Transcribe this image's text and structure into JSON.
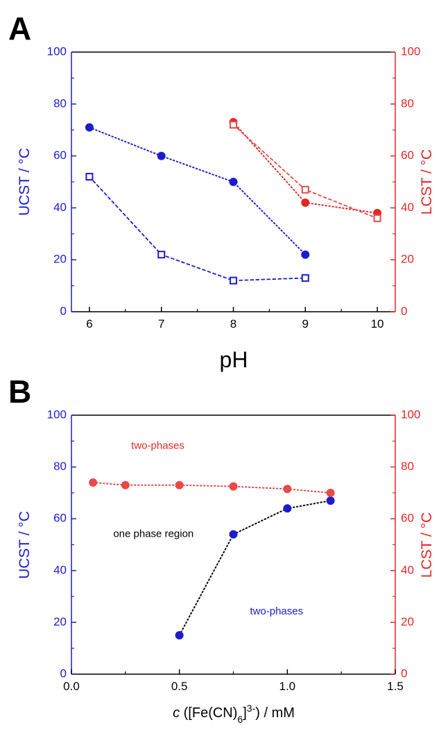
{
  "colors": {
    "blue": "#1c1ccf",
    "red": "#e32626",
    "red_light": "#e84a4a",
    "black": "#000000"
  },
  "chart_data": [
    {
      "panel_label": "A",
      "type": "line",
      "xlabel": "pH",
      "ylabel_left": "UCST / °C",
      "ylabel_right": "LCST / °C",
      "xlim": [
        5.75,
        10.25
      ],
      "ylim_left": [
        0,
        100
      ],
      "ylim_right": [
        0,
        100
      ],
      "x_ticks": [
        "6",
        "7",
        "8",
        "9",
        "10"
      ],
      "y_ticks": [
        "0",
        "20",
        "40",
        "60",
        "80",
        "100"
      ],
      "grid": false,
      "series": [
        {
          "axis": "left",
          "marker": "filled-circle",
          "line": "dotted",
          "color": "blue",
          "x": [
            6,
            7,
            8,
            9
          ],
          "y": [
            71,
            60,
            50,
            22
          ]
        },
        {
          "axis": "left",
          "marker": "open-square",
          "line": "dashed",
          "color": "blue",
          "x": [
            6,
            7,
            8,
            9
          ],
          "y": [
            52,
            22,
            12,
            13
          ]
        },
        {
          "axis": "right",
          "marker": "filled-circle",
          "line": "dotted",
          "color": "red",
          "x": [
            8,
            9,
            10
          ],
          "y": [
            73,
            42,
            38
          ]
        },
        {
          "axis": "right",
          "marker": "open-square",
          "line": "dashed",
          "color": "red_light",
          "x": [
            8,
            9,
            10
          ],
          "y": [
            72,
            47,
            36
          ]
        }
      ]
    },
    {
      "panel_label": "B",
      "type": "scatter",
      "xlabel_italic": "c",
      "xlabel_rest": " ([Fe(CN)",
      "xlabel_sub": "6",
      "xlabel_close": "]",
      "xlabel_sup": "3-",
      "xlabel_tail": ") / mM",
      "ylabel_left": "UCST / °C",
      "ylabel_right": "LCST / °C",
      "xlim": [
        0,
        1.5
      ],
      "ylim_left": [
        0,
        100
      ],
      "ylim_right": [
        0,
        100
      ],
      "x_ticks": [
        "0.0",
        "0.5",
        "1.0",
        "1.5"
      ],
      "y_ticks": [
        "0",
        "20",
        "40",
        "60",
        "80",
        "100"
      ],
      "grid": false,
      "annotations": [
        {
          "text": "two-phases",
          "color": "red",
          "x": 0.4,
          "y": 87
        },
        {
          "text": "one phase region",
          "color": "black",
          "x": 0.38,
          "y": 53
        },
        {
          "text": "two-phases",
          "color": "blue",
          "x": 0.95,
          "y": 23
        }
      ],
      "series": [
        {
          "axis": "left",
          "marker": "filled-circle",
          "line": "dotted",
          "color": "blue",
          "line_color": "black",
          "x": [
            0.5,
            0.75,
            1.0,
            1.2
          ],
          "y": [
            15,
            54,
            64,
            67
          ]
        },
        {
          "axis": "right",
          "marker": "filled-circle",
          "line": "dotted",
          "color": "red_light",
          "x": [
            0.1,
            0.25,
            0.5,
            0.75,
            1.0,
            1.2
          ],
          "y": [
            74,
            73,
            73,
            72.5,
            71.5,
            70
          ]
        }
      ]
    }
  ]
}
